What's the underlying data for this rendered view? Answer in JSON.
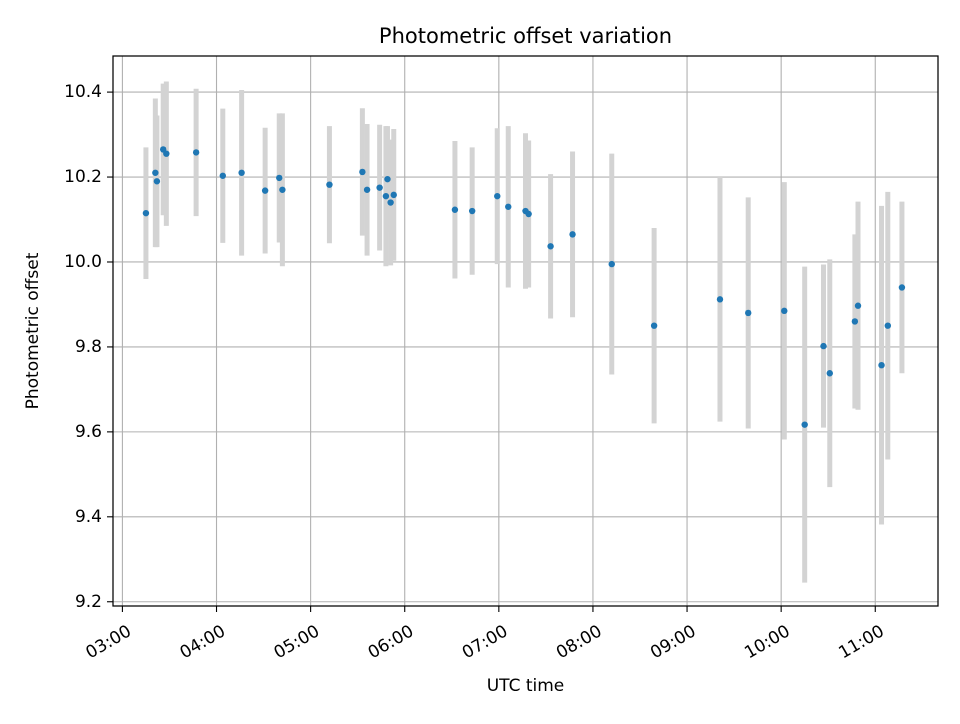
{
  "chart_data": {
    "type": "scatter",
    "title": "Photometric offset variation",
    "xlabel": "UTC time",
    "ylabel": "Photometric offset",
    "x_ticks": [
      "03:00",
      "04:00",
      "05:00",
      "06:00",
      "07:00",
      "08:00",
      "09:00",
      "10:00",
      "11:00"
    ],
    "y_ticks": [
      "9.2",
      "9.4",
      "9.6",
      "9.8",
      "10.0",
      "10.2",
      "10.4"
    ],
    "xlim": [
      "02:54",
      "11:40"
    ],
    "ylim": [
      9.19,
      10.485
    ],
    "grid": true,
    "colors": {
      "points": "#1f77b4",
      "error_bars": "#d3d3d3",
      "grid": "#b0b0b0",
      "axes": "#000000"
    },
    "series": [
      {
        "x": [
          "03:15",
          "03:21",
          "03:22",
          "03:26",
          "03:28",
          "03:47",
          "04:04",
          "04:16",
          "04:31",
          "04:40",
          "04:42",
          "05:12",
          "05:33",
          "05:36",
          "05:44",
          "05:48",
          "05:49",
          "05:51",
          "05:53",
          "06:32",
          "06:43",
          "06:59",
          "07:06",
          "07:17",
          "07:19",
          "07:33",
          "07:47",
          "08:12",
          "08:39",
          "09:21",
          "09:39",
          "10:02",
          "10:15",
          "10:27",
          "10:31",
          "10:47",
          "10:49",
          "11:04",
          "11:08",
          "11:17"
        ],
        "y": [
          10.115,
          10.21,
          10.19,
          10.265,
          10.255,
          10.258,
          10.203,
          10.21,
          10.168,
          10.198,
          10.17,
          10.182,
          10.212,
          10.17,
          10.175,
          10.155,
          10.195,
          10.14,
          10.158,
          10.123,
          10.12,
          10.155,
          10.13,
          10.12,
          10.113,
          10.037,
          10.065,
          9.995,
          9.85,
          9.912,
          9.88,
          9.885,
          9.617,
          9.802,
          9.738,
          9.86,
          9.897,
          9.757,
          9.85,
          9.94
        ],
        "yerr": [
          0.155,
          0.175,
          0.155,
          0.155,
          0.17,
          0.15,
          0.158,
          0.195,
          0.148,
          0.152,
          0.18,
          0.138,
          0.15,
          0.155,
          0.148,
          0.165,
          0.125,
          0.148,
          0.155,
          0.162,
          0.15,
          0.16,
          0.19,
          0.183,
          0.173,
          0.17,
          0.195,
          0.26,
          0.23,
          0.288,
          0.272,
          0.303,
          0.372,
          0.192,
          0.268,
          0.205,
          0.245,
          0.375,
          0.315,
          0.202
        ]
      }
    ]
  }
}
